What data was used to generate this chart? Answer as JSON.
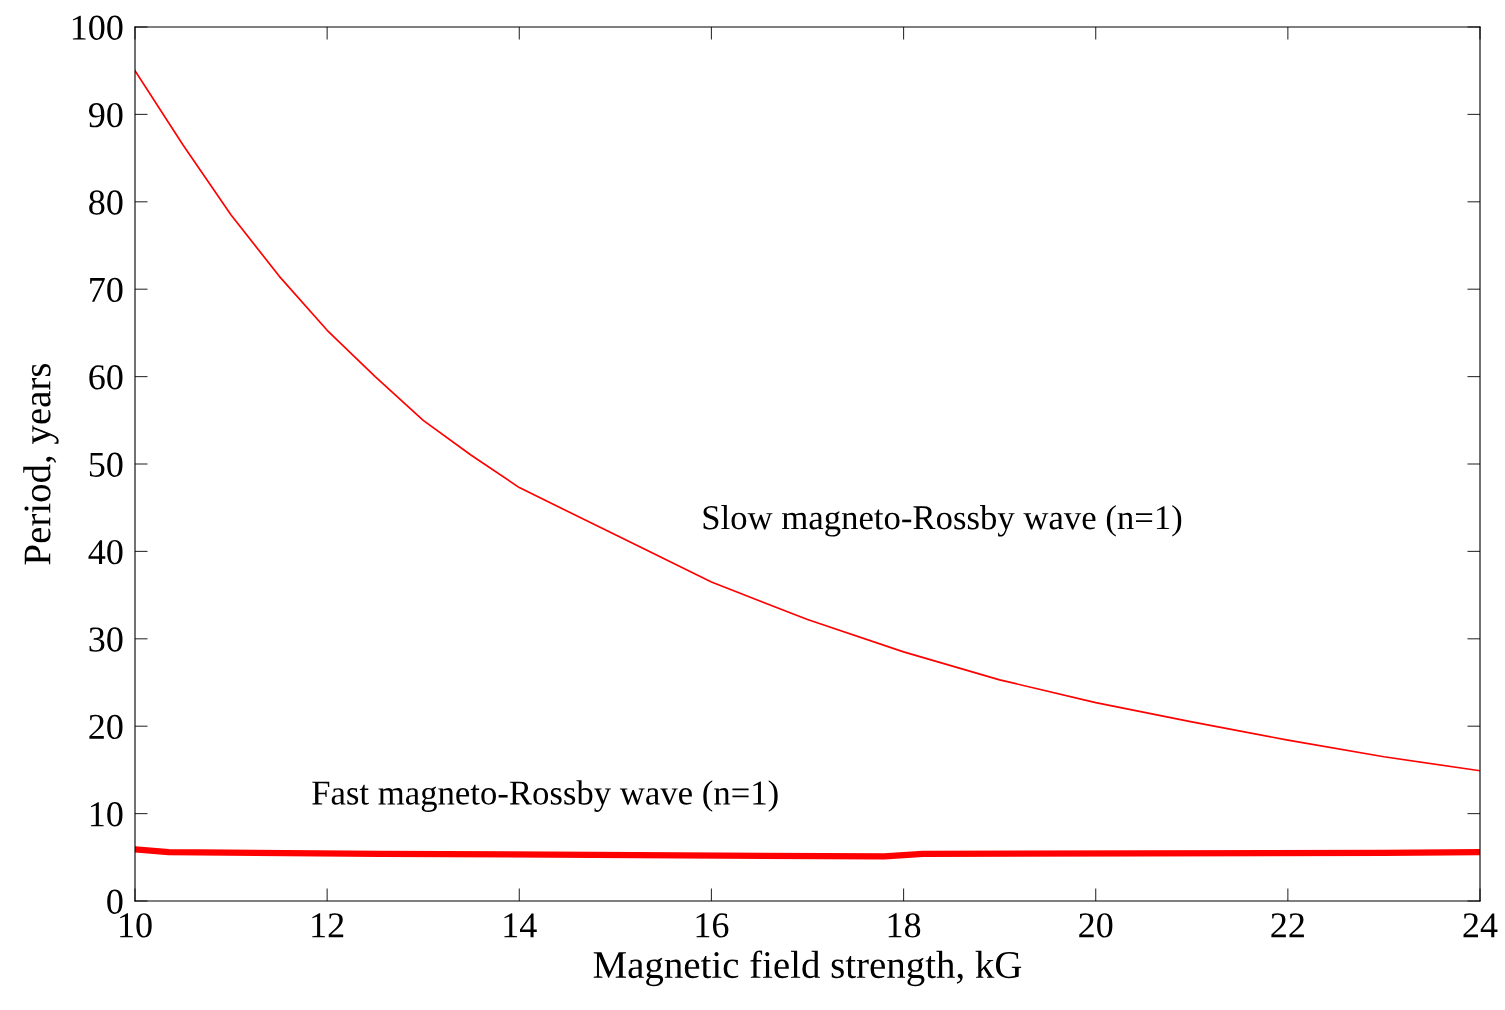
{
  "chart_data": {
    "type": "line",
    "xlabel": "Magnetic field strength, kG",
    "ylabel": "Period, years",
    "xlim": [
      10,
      24
    ],
    "xticks": [
      10,
      12,
      14,
      16,
      18,
      20,
      22,
      24
    ],
    "ylim": [
      0,
      100
    ],
    "yticks": [
      0,
      10,
      20,
      30,
      40,
      50,
      60,
      70,
      80,
      90,
      100
    ],
    "grid": false,
    "series": [
      {
        "color": "#ff0000",
        "x": [
          10,
          10.5,
          11,
          11.5,
          12,
          12.5,
          13,
          13.5,
          14,
          15,
          16,
          17,
          18,
          19,
          20,
          21,
          22,
          23,
          24
        ],
        "values": [
          95,
          86.5,
          78.5,
          71.5,
          65.3,
          60,
          55,
          51,
          47.3,
          41.9,
          36.5,
          32.2,
          28.5,
          25.3,
          22.7,
          20.5,
          18.4,
          16.5,
          14.9
        ]
      },
      {
        "color": "#ff0000",
        "x": [
          10,
          10.35,
          12.55,
          17.8,
          18.2,
          23,
          24
        ],
        "values": [
          5.9,
          5.6,
          5.4,
          5.1,
          5.4,
          5.5,
          5.6
        ]
      }
    ],
    "annotations": [
      "Slow magneto-Rossby wave (n=1)",
      "Fast magneto-Rossby wave (n=1)"
    ]
  }
}
